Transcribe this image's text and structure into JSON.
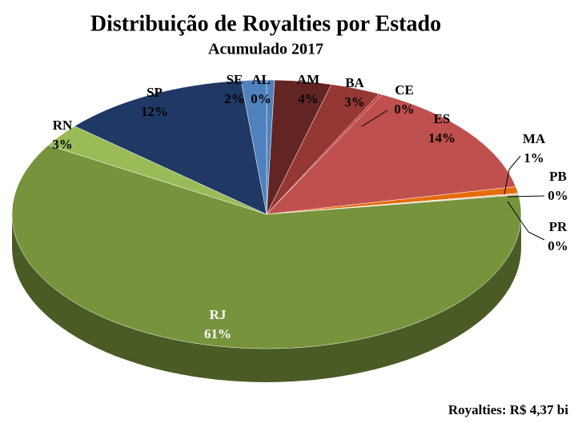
{
  "chart_data": {
    "type": "pie",
    "title": "Distribuição de Royalties por Estado",
    "subtitle": "Acumulado 2017",
    "annotation": "Royalties: R$ 4,37 bi",
    "categories": [
      "AL",
      "AM",
      "BA",
      "CE",
      "ES",
      "MA",
      "PB",
      "PR",
      "RJ",
      "RN",
      "SP",
      "SE"
    ],
    "values": [
      0.5,
      3.6,
      3.2,
      0.2,
      14.2,
      0.8,
      0.1,
      0.1,
      60.9,
      2.8,
      12.0,
      1.6
    ],
    "value_labels": [
      "0%",
      "4%",
      "3%",
      "0%",
      "14%",
      "1%",
      "0%",
      "0%",
      "61%",
      "3%",
      "12%",
      "2%"
    ],
    "colors": [
      "#4f81bd",
      "#632523",
      "#953735",
      "#b9403c",
      "#c0504d",
      "#e46c0a",
      "#f79646",
      "#a5a5a5",
      "#77933c",
      "#9bbb59",
      "#1f3864",
      "#4f81bd"
    ]
  }
}
